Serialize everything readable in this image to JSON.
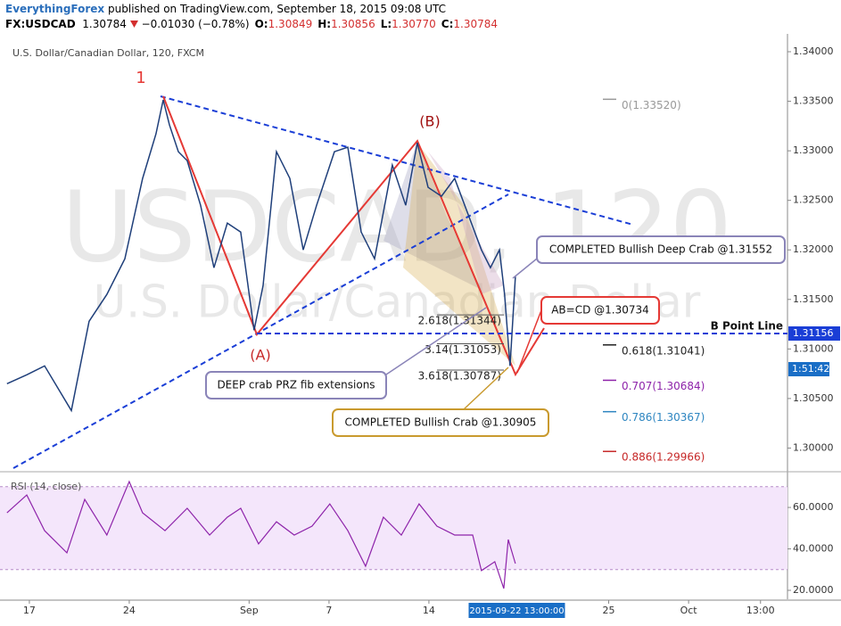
{
  "header": {
    "author": "EverythingForex",
    "published": "published on TradingView.com, September 18, 2015 09:08 UTC",
    "symbol": "FX:USDCAD",
    "last": "1.30784",
    "change": "−0.01030 (−0.78%)",
    "ohlc": [
      {
        "key": "O:",
        "value": "1.30849"
      },
      {
        "key": "H:",
        "value": "1.30856"
      },
      {
        "key": "L:",
        "value": "1.30770"
      },
      {
        "key": "C:",
        "value": "1.30784"
      }
    ]
  },
  "chart_data": [
    {
      "type": "line",
      "title": "U.S. Dollar/Canadian Dollar, 120, FXCM",
      "watermark": [
        "USDCAD, 120",
        "U.S. Dollar/Canadian Dollar"
      ],
      "color": "#1f3f7a",
      "x": [
        -1.12,
        -0.13,
        0.76,
        2.1,
        2.99,
        3.88,
        4.78,
        5.67,
        6.34,
        6.7,
        7.01,
        7.46,
        7.9,
        8.57,
        9.24,
        9.91,
        10.58,
        11.25,
        11.7,
        12.37,
        13.04,
        13.71,
        14.38,
        15.27,
        15.94,
        16.61,
        17.28,
        18.17,
        18.84,
        19.42,
        19.96,
        20.63,
        21.29,
        21.96,
        22.63,
        23.08,
        23.53,
        23.79,
        24.06,
        24.33
      ],
      "values": [
        1.30649,
        1.30739,
        1.30829,
        1.30378,
        1.31279,
        1.3155,
        1.3191,
        1.32721,
        1.33171,
        1.33514,
        1.33261,
        1.32991,
        1.32901,
        1.3245,
        1.3182,
        1.3227,
        1.3218,
        1.31189,
        1.3164,
        1.32991,
        1.32721,
        1.32,
        1.3245,
        1.32991,
        1.33036,
        1.3218,
        1.3191,
        1.32856,
        1.3245,
        1.33081,
        1.32631,
        1.32541,
        1.32721,
        1.3236,
        1.32,
        1.3182,
        1.32,
        1.3155,
        1.30829,
        1.3173
      ],
      "xlim": [
        -1.47,
        37.95
      ],
      "ylim": [
        1.2977,
        1.3418
      ],
      "yticks": [
        {
          "value": 1.34,
          "label": "1.34000"
        },
        {
          "value": 1.335,
          "label": "1.33500"
        },
        {
          "value": 1.33,
          "label": "1.33000"
        },
        {
          "value": 1.325,
          "label": "1.32500"
        },
        {
          "value": 1.32,
          "label": "1.32000"
        },
        {
          "value": 1.315,
          "label": "1.31500"
        },
        {
          "value": 1.31,
          "label": "1.31000"
        },
        {
          "value": 1.305,
          "label": "1.30500"
        },
        {
          "value": 1.3,
          "label": "1.30000"
        }
      ],
      "b_point_line": {
        "value": 1.31156,
        "label": "1.31156",
        "text": "B Point Line"
      },
      "countdown": "1:51:42",
      "fib_levels": [
        {
          "value": 1.3352,
          "label": "0(1.33520)",
          "color": "#999999"
        },
        {
          "value": 1.31041,
          "label": "0.618(1.31041)",
          "color": "#222222"
        },
        {
          "value": 1.30684,
          "label": "0.707(1.30684)",
          "color": "#8e24aa"
        },
        {
          "value": 1.30367,
          "label": "0.786(1.30367)",
          "color": "#2e86c1"
        },
        {
          "value": 1.29966,
          "label": "0.886(1.29966)",
          "color": "#c62828"
        }
      ],
      "extension_levels": [
        {
          "value": 1.31344,
          "label": "2.618(1.31344)"
        },
        {
          "value": 1.31053,
          "label": "3.14(1.31053)"
        },
        {
          "value": 1.30787,
          "label": "3.618(1.30787)"
        }
      ],
      "annotations": {
        "wave_1": "1",
        "point_a": "(A)",
        "point_b": "(B)",
        "deep_crab": "COMPLETED Bullish Deep Crab @1.31552",
        "abcd": "AB=CD @1.30734",
        "prz": "DEEP crab PRZ fib extensions",
        "crab": "COMPLETED Bullish Crab @1.30905"
      }
    },
    {
      "type": "line",
      "title": "RSI (14, close)",
      "color": "#8e24aa",
      "x": [
        -1.12,
        -0.13,
        0.76,
        1.88,
        2.77,
        3.88,
        5.0,
        5.67,
        6.79,
        7.9,
        9.02,
        9.91,
        10.58,
        11.47,
        12.37,
        13.26,
        14.15,
        15.04,
        15.94,
        16.83,
        17.72,
        18.62,
        19.51,
        20.4,
        21.29,
        22.19,
        22.63,
        23.3,
        23.75,
        23.97,
        24.33
      ],
      "values": [
        57.4,
        66.0,
        48.8,
        38.1,
        63.9,
        46.7,
        72.5,
        57.4,
        48.8,
        59.6,
        46.7,
        55.3,
        59.6,
        42.4,
        53.1,
        46.7,
        51.0,
        61.7,
        48.8,
        31.6,
        55.3,
        46.7,
        61.7,
        51.0,
        46.7,
        46.7,
        29.5,
        33.8,
        20.9,
        44.5,
        32.9
      ],
      "xlim": [
        -1.47,
        37.95
      ],
      "ylim": [
        15.7,
        76.8
      ],
      "yticks": [
        {
          "value": 60,
          "label": "60.0000"
        },
        {
          "value": 40,
          "label": "40.0000"
        },
        {
          "value": 20,
          "label": "20.0000"
        }
      ],
      "bands": [
        30,
        70
      ],
      "xticks": [
        {
          "value": 0,
          "label": "17"
        },
        {
          "value": 5,
          "label": "24"
        },
        {
          "value": 11,
          "label": "Sep"
        },
        {
          "value": 15,
          "label": "7"
        },
        {
          "value": 20,
          "label": "14"
        },
        {
          "value": 29,
          "label": "25"
        },
        {
          "value": 33,
          "label": "Oct"
        },
        {
          "value": 36.6,
          "label": "13:00"
        }
      ],
      "crosshair": {
        "value": 24.4,
        "label": "2015-09-22 13:00:00"
      }
    }
  ]
}
